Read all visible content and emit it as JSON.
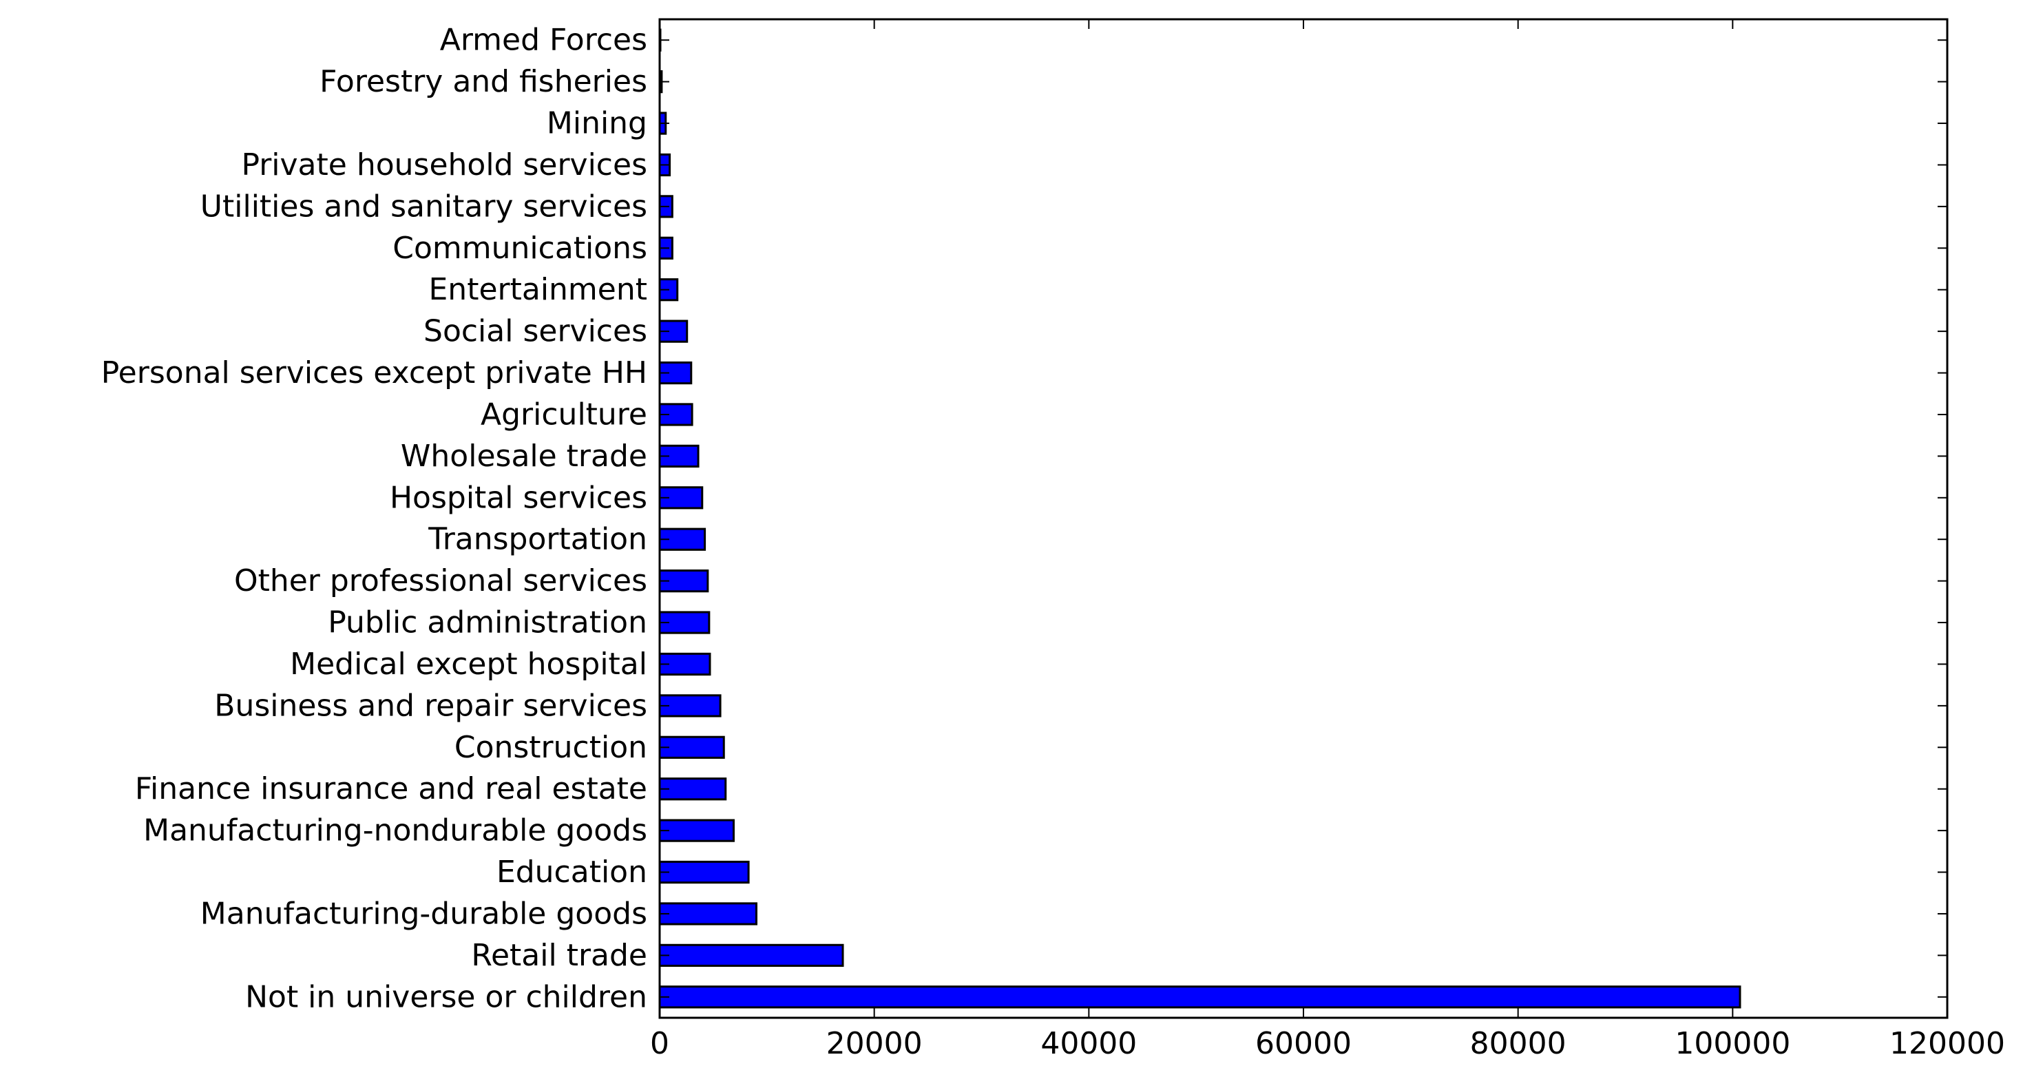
{
  "chart_data": {
    "type": "bar",
    "orientation": "horizontal",
    "title": "",
    "xlabel": "",
    "ylabel": "",
    "xlim": [
      0,
      120000
    ],
    "x_ticks": [
      0,
      20000,
      40000,
      60000,
      80000,
      100000,
      120000
    ],
    "x_tick_labels": [
      "0",
      "20000",
      "40000",
      "60000",
      "80000",
      "100000",
      "120000"
    ],
    "grid": false,
    "legend": "none",
    "bar_color": "#0000ff",
    "edge_color": "#000000",
    "categories": [
      "Not in universe or children",
      "Retail trade",
      "Manufacturing-durable goods",
      "Education",
      "Manufacturing-nondurable goods",
      "Finance insurance and real estate",
      "Construction",
      "Business and repair services",
      "Medical except hospital",
      "Public administration",
      "Other professional services",
      "Transportation",
      "Hospital services",
      "Wholesale trade",
      "Agriculture",
      "Personal services except private HH",
      "Social services",
      "Entertainment",
      "Communications",
      "Utilities and sanitary services",
      "Private household services",
      "Mining",
      "Forestry and fisheries",
      "Armed Forces"
    ],
    "values": [
      100684,
      17070,
      9015,
      8283,
      6897,
      6145,
      5984,
      5651,
      4683,
      4610,
      4482,
      4209,
      3964,
      3596,
      3023,
      2937,
      2549,
      1651,
      1181,
      1178,
      936,
      563,
      187,
      36
    ]
  }
}
